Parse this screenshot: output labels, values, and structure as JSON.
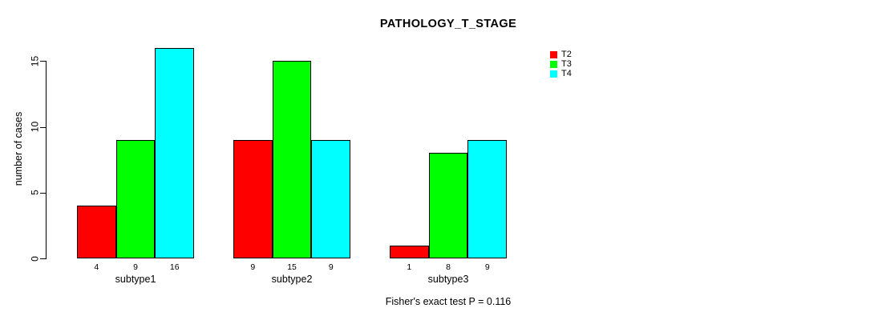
{
  "figure": {
    "background": "#ffffff",
    "text_color": "#000000"
  },
  "chart_data": {
    "type": "bar",
    "title": "PATHOLOGY_T_STAGE",
    "xlabel": "",
    "ylabel": "number of cases",
    "categories": [
      "subtype1",
      "subtype2",
      "subtype3"
    ],
    "series": [
      {
        "name": "T2",
        "color": "#ff0000",
        "values": [
          4,
          9,
          1
        ]
      },
      {
        "name": "T3",
        "color": "#00ff00",
        "values": [
          9,
          15,
          8
        ]
      },
      {
        "name": "T4",
        "color": "#00ffff",
        "values": [
          16,
          9,
          9
        ]
      }
    ],
    "yticks": [
      0,
      5,
      10,
      15
    ],
    "ylim": [
      0,
      16.6
    ],
    "grid": false,
    "bar_outline_color": "#000000",
    "legend_position": "top-right",
    "legend_entries": [
      "T2",
      "T3",
      "T4"
    ],
    "annotation": "Fisher's exact test P = 0.116"
  }
}
